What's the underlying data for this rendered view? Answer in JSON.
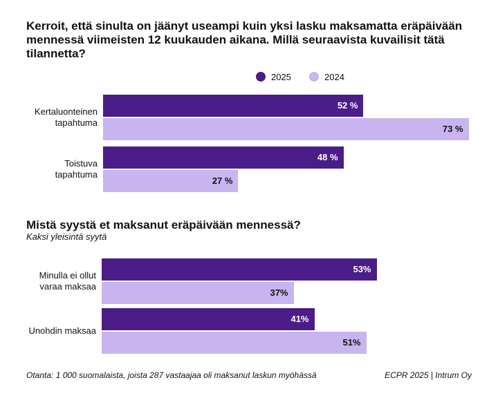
{
  "chart_data": [
    {
      "type": "barh",
      "title": "Kerroit, että sinulta on jäänyt useampi kuin yksi lasku maksamatta eräpäivään mennessä viimeisten 12 kuukauden aikana. Millä seuraavista kuvailisit tätä tilannetta?",
      "categories": [
        "Kertaluonteinen tapahtuma",
        "Toistuva tapahtuma"
      ],
      "series": [
        {
          "name": "2025",
          "color": "#4a1d88",
          "values": [
            52,
            48
          ],
          "value_labels": [
            "52 %",
            "48 %"
          ]
        },
        {
          "name": "2024",
          "color": "#c8b5ef",
          "values": [
            73,
            27
          ],
          "value_labels": [
            "73 %",
            "27 %"
          ]
        }
      ],
      "legend": "top"
    },
    {
      "type": "barh",
      "title": "Mistä syystä et maksanut eräpäivään mennessä?",
      "subtitle": "Kaksi yleisintä syytä",
      "categories": [
        "Minulla ei ollut varaa maksaa",
        "Unohdin maksaa"
      ],
      "series": [
        {
          "color": "#4a1d88",
          "values": [
            53,
            41
          ],
          "value_labels": [
            "53%",
            "41%"
          ]
        },
        {
          "color": "#c8b5ef",
          "values": [
            37,
            51
          ],
          "value_labels": [
            "37%",
            "51%"
          ]
        }
      ]
    }
  ],
  "footer": {
    "note": "Otanta: 1 000 suomalaista, joista 287 vastaajaa oli maksanut laskun myöhässä",
    "source": "ECPR 2025 | Intrum Oy"
  }
}
